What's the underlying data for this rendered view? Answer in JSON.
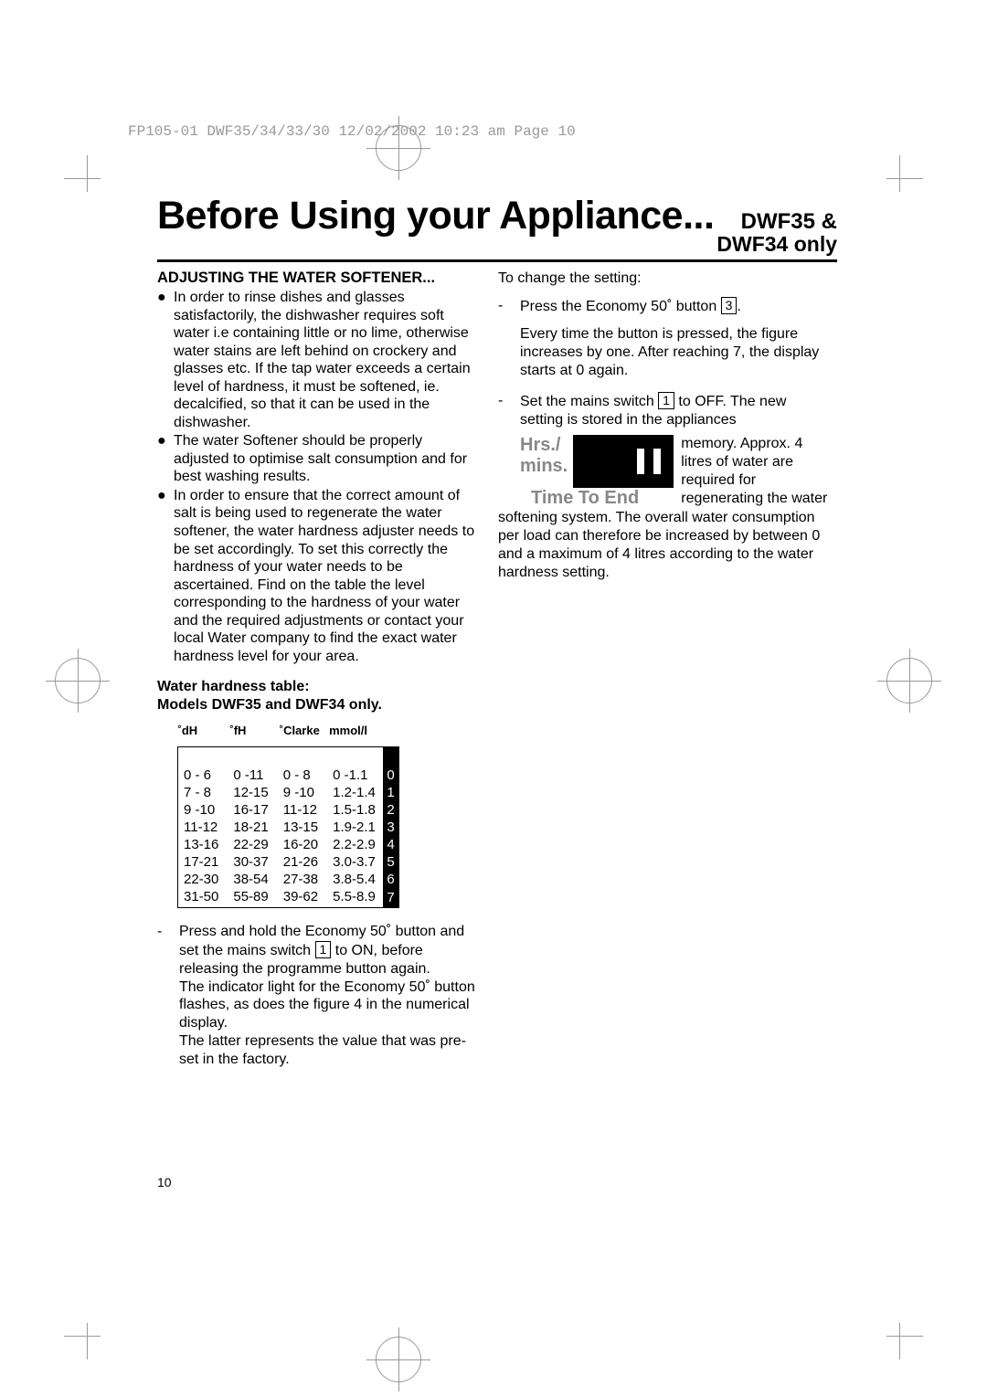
{
  "print_header": "FP105-01 DWF35/34/33/30  12/02/2002  10:23 am  Page 10",
  "title": "Before Using your Appliance...",
  "model": {
    "line1": "DWF35 &",
    "line2": "DWF34 only"
  },
  "section_heading": "ADJUSTING THE WATER SOFTENER...",
  "bullets": [
    "In order to rinse dishes and glasses satisfactorily, the dishwasher requires soft water i.e containing little or no lime, otherwise water stains are left behind on crockery and glasses etc. If the tap water exceeds a certain level of hardness, it must be softened, ie. decalcified, so that it can be used in the dishwasher.",
    "The water Softener should be properly adjusted to optimise salt consumption and for best washing results.",
    "In order to ensure that the correct amount of salt is being used to regenerate the water softener, the water hardness adjuster needs to be set accordingly. To set this correctly the hardness of your water needs to be ascertained. Find on the table the level corresponding to the hardness of your water and the required adjustments or contact your local Water company to find the exact water hardness level for your area."
  ],
  "table_heading_line1": "Water hardness table:",
  "table_heading_line2": "Models DWF35 and DWF34 only",
  "table": {
    "headers": [
      "˚dH",
      "˚fH",
      "˚Clarke",
      "mmol/l"
    ],
    "rows": [
      {
        "dh": "0 - 6",
        "fh": "0 -11",
        "clarke": "0 - 8",
        "mmol": "0 -1.1",
        "setting": "0"
      },
      {
        "dh": " 7 - 8",
        "fh": "12-15",
        "clarke": "9 -10",
        "mmol": "1.2-1.4",
        "setting": "1"
      },
      {
        "dh": " 9 -10",
        "fh": "16-17",
        "clarke": "11-12",
        "mmol": "1.5-1.8",
        "setting": "2"
      },
      {
        "dh": "11-12",
        "fh": "18-21",
        "clarke": "13-15",
        "mmol": "1.9-2.1",
        "setting": "3"
      },
      {
        "dh": "13-16",
        "fh": "22-29",
        "clarke": "16-20",
        "mmol": "2.2-2.9",
        "setting": "4"
      },
      {
        "dh": "17-21",
        "fh": "30-37",
        "clarke": "21-26",
        "mmol": "3.0-3.7",
        "setting": "5"
      },
      {
        "dh": "22-30",
        "fh": "38-54",
        "clarke": "27-38",
        "mmol": "3.8-5.4",
        "setting": "6"
      },
      {
        "dh": "31-50",
        "fh": "55-89",
        "clarke": "39-62",
        "mmol": "5.5-8.9",
        "setting": "7"
      }
    ]
  },
  "post_table_text": "Press and hold the Economy 50˚ button and set the mains switch",
  "post_table_box": "1",
  "post_table_text2": "to ON, before releasing the programme button again.",
  "post_table_text3": "The indicator light for the Economy 50˚ button flashes, as does the figure 4 in the numerical display.",
  "post_table_text4": "The latter represents the value that was pre-set in the factory.",
  "right_col": {
    "change_setting": "To change the setting:",
    "press_economy_pre": "Press the Economy 50˚ button ",
    "press_economy_box": "3",
    "press_economy_post": ".",
    "every_time": "Every time the button is pressed, the figure increases by one. After reaching 7, the display starts at 0 again.",
    "set_mains_pre": "Set the mains switch ",
    "set_mains_box": "1",
    "set_mains_post": " to OFF. The new setting is stored in the appliances memory. Approx. 4 litres of water are required for regenerating the water softening system. The overall water consumption per load can therefore be increased by between 0 and a maximum of 4 litres according to the water hardness setting.",
    "display_label_hrs": "Hrs./",
    "display_label_mins": "mins.",
    "time_to_end": "Time To End"
  },
  "page_number": "10",
  "colors": {
    "text": "#000000",
    "background": "#ffffff",
    "crop_marks": "#999999",
    "display_label": "#888888",
    "setting_bg": "#000000",
    "setting_fg": "#ffffff"
  }
}
